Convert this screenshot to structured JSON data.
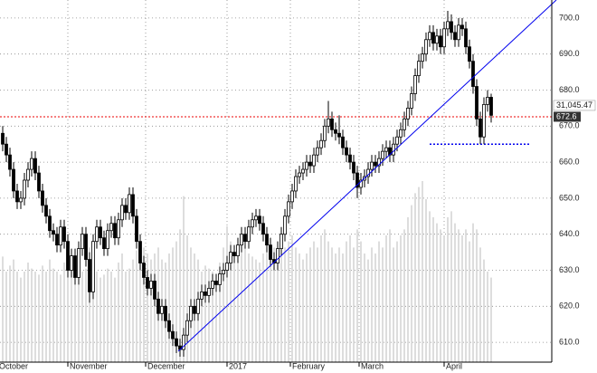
{
  "chart_data": {
    "type": "candlestick",
    "candles": [
      [
        668,
        670,
        663,
        665
      ],
      [
        665,
        667,
        660,
        662
      ],
      [
        662,
        664,
        656,
        658
      ],
      [
        658,
        660,
        650,
        652
      ],
      [
        652,
        654,
        647,
        649
      ],
      [
        649,
        652,
        647,
        650
      ],
      [
        650,
        657,
        648,
        655
      ],
      [
        655,
        660,
        653,
        658
      ],
      [
        658,
        663,
        656,
        661
      ],
      [
        661,
        663,
        655,
        657
      ],
      [
        657,
        659,
        650,
        652
      ],
      [
        652,
        654,
        646,
        648
      ],
      [
        648,
        650,
        643,
        645
      ],
      [
        645,
        647,
        639,
        641
      ],
      [
        641,
        643,
        638,
        640
      ],
      [
        640,
        642,
        635,
        637
      ],
      [
        637,
        644,
        635,
        642
      ],
      [
        642,
        644,
        636,
        638
      ],
      [
        638,
        640,
        628,
        630
      ],
      [
        630,
        636,
        628,
        634
      ],
      [
        634,
        636,
        626,
        628
      ],
      [
        628,
        638,
        626,
        636
      ],
      [
        636,
        642,
        634,
        640
      ],
      [
        640,
        642,
        631,
        633
      ],
      [
        633,
        635,
        621,
        624
      ],
      [
        624,
        640,
        622,
        638
      ],
      [
        638,
        644,
        636,
        642
      ],
      [
        642,
        644,
        637,
        639
      ],
      [
        639,
        641,
        634,
        636
      ],
      [
        636,
        643,
        634,
        641
      ],
      [
        641,
        645,
        639,
        643
      ],
      [
        643,
        645,
        637,
        639
      ],
      [
        639,
        646,
        637,
        644
      ],
      [
        644,
        650,
        642,
        648
      ],
      [
        648,
        650,
        644,
        646
      ],
      [
        646,
        653,
        644,
        651
      ],
      [
        651,
        653,
        643,
        645
      ],
      [
        645,
        647,
        636,
        638
      ],
      [
        638,
        640,
        630,
        632
      ],
      [
        632,
        634,
        626,
        628
      ],
      [
        628,
        630,
        623,
        625
      ],
      [
        625,
        629,
        623,
        627
      ],
      [
        627,
        629,
        620,
        622
      ],
      [
        622,
        624,
        616,
        618
      ],
      [
        618,
        622,
        616,
        620
      ],
      [
        620,
        622,
        614,
        616
      ],
      [
        616,
        618,
        611,
        613
      ],
      [
        613,
        615,
        609,
        611
      ],
      [
        611,
        613,
        607,
        609
      ],
      [
        609,
        611,
        606,
        608
      ],
      [
        608,
        614,
        606,
        612
      ],
      [
        612,
        618,
        610,
        616
      ],
      [
        616,
        622,
        614,
        620
      ],
      [
        620,
        622,
        616,
        618
      ],
      [
        618,
        624,
        616,
        622
      ],
      [
        622,
        626,
        620,
        624
      ],
      [
        624,
        626,
        621,
        623
      ],
      [
        623,
        627,
        621,
        625
      ],
      [
        625,
        629,
        623,
        627
      ],
      [
        627,
        629,
        624,
        626
      ],
      [
        626,
        631,
        624,
        629
      ],
      [
        629,
        632,
        627,
        630
      ],
      [
        630,
        634,
        628,
        632
      ],
      [
        632,
        637,
        630,
        635
      ],
      [
        635,
        637,
        632,
        634
      ],
      [
        634,
        639,
        632,
        637
      ],
      [
        637,
        642,
        635,
        640
      ],
      [
        640,
        642,
        636,
        638
      ],
      [
        638,
        644,
        636,
        642
      ],
      [
        642,
        646,
        640,
        644
      ],
      [
        644,
        647,
        642,
        645
      ],
      [
        645,
        647,
        641,
        643
      ],
      [
        643,
        645,
        638,
        640
      ],
      [
        640,
        642,
        635,
        637
      ],
      [
        637,
        639,
        631,
        633
      ],
      [
        633,
        635,
        630,
        632
      ],
      [
        632,
        638,
        630,
        636
      ],
      [
        636,
        642,
        634,
        640
      ],
      [
        640,
        647,
        638,
        645
      ],
      [
        645,
        651,
        643,
        649
      ],
      [
        649,
        654,
        647,
        652
      ],
      [
        652,
        658,
        650,
        656
      ],
      [
        656,
        659,
        654,
        657
      ],
      [
        657,
        660,
        655,
        658
      ],
      [
        658,
        662,
        656,
        660
      ],
      [
        660,
        662,
        657,
        659
      ],
      [
        659,
        664,
        657,
        662
      ],
      [
        662,
        666,
        660,
        664
      ],
      [
        664,
        668,
        662,
        666
      ],
      [
        666,
        672,
        664,
        670
      ],
      [
        670,
        677,
        668,
        672
      ],
      [
        672,
        674,
        667,
        669
      ],
      [
        669,
        671,
        666,
        668
      ],
      [
        668,
        673,
        665,
        667
      ],
      [
        667,
        669,
        662,
        664
      ],
      [
        664,
        666,
        660,
        662
      ],
      [
        662,
        664,
        658,
        660
      ],
      [
        660,
        662,
        655,
        657
      ],
      [
        657,
        659,
        650,
        653
      ],
      [
        653,
        657,
        651,
        655
      ],
      [
        655,
        658,
        653,
        656
      ],
      [
        656,
        660,
        654,
        658
      ],
      [
        658,
        662,
        656,
        660
      ],
      [
        660,
        662,
        657,
        659
      ],
      [
        659,
        663,
        657,
        661
      ],
      [
        661,
        665,
        659,
        663
      ],
      [
        663,
        666,
        661,
        664
      ],
      [
        664,
        666,
        660,
        662
      ],
      [
        662,
        667,
        660,
        665
      ],
      [
        665,
        669,
        663,
        667
      ],
      [
        667,
        671,
        665,
        669
      ],
      [
        669,
        674,
        667,
        672
      ],
      [
        672,
        677,
        670,
        675
      ],
      [
        675,
        681,
        673,
        679
      ],
      [
        679,
        686,
        677,
        684
      ],
      [
        684,
        690,
        682,
        688
      ],
      [
        688,
        692,
        686,
        690
      ],
      [
        690,
        696,
        688,
        694
      ],
      [
        694,
        698,
        692,
        696
      ],
      [
        696,
        698,
        691,
        693
      ],
      [
        693,
        697,
        691,
        695
      ],
      [
        695,
        697,
        690,
        692
      ],
      [
        692,
        699,
        690,
        697
      ],
      [
        697,
        702,
        695,
        699
      ],
      [
        699,
        701,
        694,
        696
      ],
      [
        696,
        698,
        692,
        694
      ],
      [
        694,
        700,
        692,
        698
      ],
      [
        698,
        700,
        695,
        697
      ],
      [
        697,
        699,
        690,
        692
      ],
      [
        692,
        694,
        686,
        688
      ],
      [
        688,
        690,
        679,
        681
      ],
      [
        681,
        683,
        670,
        672
      ],
      [
        672,
        674,
        665,
        667
      ],
      [
        667,
        678,
        665,
        676
      ],
      [
        676,
        680,
        674,
        678
      ],
      [
        678,
        679,
        671,
        673
      ]
    ],
    "volume": [
      35,
      30,
      32,
      34,
      30,
      28,
      30,
      33,
      31,
      30,
      29,
      32,
      30,
      34,
      31,
      30,
      29,
      33,
      36,
      34,
      35,
      33,
      30,
      31,
      38,
      36,
      30,
      28,
      29,
      31,
      30,
      28,
      33,
      36,
      30,
      31,
      34,
      37,
      40,
      38,
      36,
      34,
      36,
      38,
      34,
      33,
      36,
      38,
      40,
      44,
      55,
      42,
      38,
      36,
      34,
      30,
      32,
      31,
      30,
      28,
      33,
      38,
      45,
      40,
      36,
      34,
      38,
      40,
      36,
      35,
      34,
      33,
      36,
      38,
      40,
      38,
      34,
      36,
      38,
      40,
      42,
      38,
      36,
      34,
      36,
      38,
      40,
      38,
      42,
      44,
      40,
      38,
      36,
      38,
      36,
      40,
      42,
      38,
      44,
      40,
      36,
      34,
      38,
      36,
      40,
      38,
      42,
      44,
      38,
      40,
      42,
      44,
      48,
      52,
      56,
      58,
      60,
      54,
      50,
      48,
      46,
      44,
      42,
      48,
      50,
      46,
      44,
      42,
      44,
      40,
      46,
      44,
      38,
      34,
      30,
      28
    ],
    "xlim": [
      -0.75,
      151.75
    ],
    "ylim": [
      604.5,
      705
    ],
    "xticks": [
      {
        "value": -1.5,
        "label": "October"
      },
      {
        "value": 18,
        "label": "November"
      },
      {
        "value": 39.5,
        "label": "December"
      },
      {
        "value": 62,
        "label": "2017"
      },
      {
        "value": 79.5,
        "label": "February"
      },
      {
        "value": 98.5,
        "label": "March"
      },
      {
        "value": 122,
        "label": "April"
      }
    ],
    "yticks": [
      {
        "value": 610,
        "label": "610.0"
      },
      {
        "value": 620,
        "label": "620.0"
      },
      {
        "value": 630,
        "label": "630.0"
      },
      {
        "value": 640,
        "label": "640.0"
      },
      {
        "value": 650,
        "label": "650.0"
      },
      {
        "value": 660,
        "label": "660.0"
      },
      {
        "value": 670,
        "label": "670.0"
      },
      {
        "value": 680,
        "label": "680.0"
      },
      {
        "value": 690,
        "label": "690.0"
      },
      {
        "value": 700,
        "label": "700.0"
      }
    ],
    "grid": true,
    "trendline": {
      "x": [
        48.5,
        153
      ],
      "y": [
        607.5,
        705
      ],
      "color": "#0000ee"
    },
    "price_line": {
      "value": 672.6,
      "label": "672.6",
      "color": "#ee0000"
    },
    "support_line": {
      "x": [
        118,
        146
      ],
      "value": 665,
      "color": "#0000ee"
    },
    "indicator_label": "31,045.47",
    "up_color": "#ffffff",
    "down_color": "#000000",
    "volume_color": "#bbbbbb"
  }
}
